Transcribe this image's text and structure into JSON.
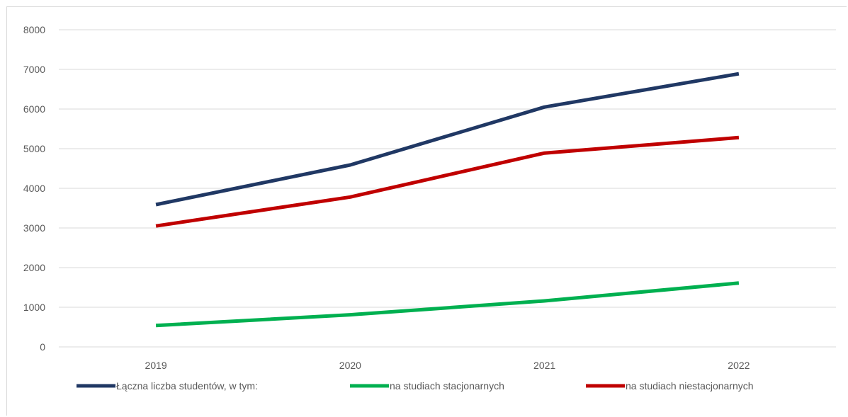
{
  "chart_data": {
    "type": "line",
    "title": "",
    "xlabel": "",
    "ylabel": "",
    "categories": [
      "2019",
      "2020",
      "2021",
      "2022"
    ],
    "ylim": [
      0,
      8000
    ],
    "yticks": [
      "0",
      "1000",
      "2000",
      "3000",
      "4000",
      "5000",
      "6000",
      "7000",
      "8000"
    ],
    "grid": true,
    "legend_position": "bottom",
    "series": [
      {
        "name": "Łączna liczba studentów, w tym:",
        "values": [
          3590,
          4590,
          6050,
          6890
        ],
        "color": "#203864"
      },
      {
        "name": "na studiach stacjonarnych",
        "values": [
          540,
          810,
          1160,
          1610
        ],
        "color": "#00b050"
      },
      {
        "name": "na studiach niestacjonarnych",
        "values": [
          3050,
          3780,
          4890,
          5280
        ],
        "color": "#c00000"
      }
    ]
  }
}
